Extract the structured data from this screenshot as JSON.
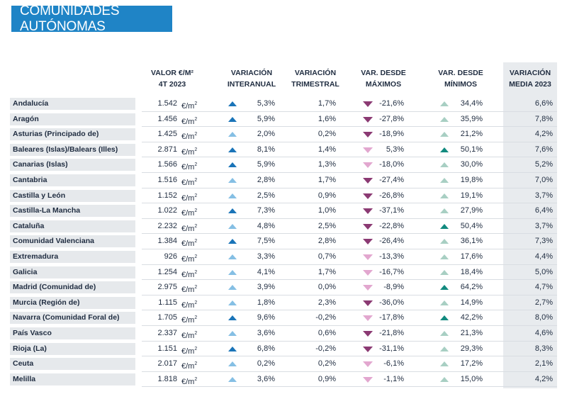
{
  "banner": {
    "title": "COMUNIDADES AUTÓNOMAS"
  },
  "headers": {
    "valor": [
      "VALOR €/M²",
      "4T 2023"
    ],
    "interanual": [
      "VARIACIÓN",
      "INTERANUAL"
    ],
    "trimestral": [
      "VARIACIÓN",
      "TRIMESTRAL"
    ],
    "maximos": [
      "VAR. DESDE",
      "MÁXIMOS"
    ],
    "minimos": [
      "VAR. DESDE",
      "MÍNIMOS"
    ],
    "media": [
      "VARIACIÓN",
      "MEDIA 2023"
    ]
  },
  "unit": "€/m",
  "unit_sup": "2",
  "colors": {
    "up_dark": "#1a74b8",
    "up_light": "#85bfe4",
    "down_dark": "#8b3a73",
    "down_light": "#e2a7cf",
    "min_dark": "#128a7f",
    "min_light": "#a8cfc3"
  },
  "rows": [
    {
      "name": "Andalucía",
      "valor": "1.542",
      "inter": "5,3%",
      "inter_shade": "dark",
      "trim": "1,7%",
      "max": "-21,6%",
      "max_shade": "dark",
      "min": "34,4%",
      "min_shade": "light",
      "media": "6,6%"
    },
    {
      "name": "Aragón",
      "valor": "1.456",
      "inter": "5,9%",
      "inter_shade": "dark",
      "trim": "1,6%",
      "max": "-27,8%",
      "max_shade": "dark",
      "min": "35,9%",
      "min_shade": "light",
      "media": "7,8%"
    },
    {
      "name": "Asturias (Principado de)",
      "valor": "1.425",
      "inter": "2,0%",
      "inter_shade": "light",
      "trim": "0,2%",
      "max": "-18,9%",
      "max_shade": "dark",
      "min": "21,2%",
      "min_shade": "light",
      "media": "4,2%"
    },
    {
      "name": "Baleares (Islas)/Balears (Illes)",
      "valor": "2.871",
      "inter": "8,1%",
      "inter_shade": "dark",
      "trim": "1,4%",
      "max": "5,3%",
      "max_shade": "light",
      "min": "50,1%",
      "min_shade": "dark",
      "media": "7,6%"
    },
    {
      "name": "Canarias (Islas)",
      "valor": "1.566",
      "inter": "5,9%",
      "inter_shade": "dark",
      "trim": "1,3%",
      "max": "-18,0%",
      "max_shade": "light",
      "min": "30,0%",
      "min_shade": "light",
      "media": "5,2%"
    },
    {
      "name": "Cantabria",
      "valor": "1.516",
      "inter": "2,8%",
      "inter_shade": "light",
      "trim": "1,7%",
      "max": "-27,4%",
      "max_shade": "dark",
      "min": "19,8%",
      "min_shade": "light",
      "media": "7,0%"
    },
    {
      "name": "Castilla y León",
      "valor": "1.152",
      "inter": "2,5%",
      "inter_shade": "light",
      "trim": "0,9%",
      "max": "-26,8%",
      "max_shade": "dark",
      "min": "19,1%",
      "min_shade": "light",
      "media": "3,7%"
    },
    {
      "name": "Castilla-La Mancha",
      "valor": "1.022",
      "inter": "7,3%",
      "inter_shade": "dark",
      "trim": "1,0%",
      "max": "-37,1%",
      "max_shade": "dark",
      "min": "27,9%",
      "min_shade": "light",
      "media": "6,4%"
    },
    {
      "name": "Cataluña",
      "valor": "2.232",
      "inter": "4,8%",
      "inter_shade": "light",
      "trim": "2,5%",
      "max": "-22,8%",
      "max_shade": "dark",
      "min": "50,4%",
      "min_shade": "dark",
      "media": "3,7%"
    },
    {
      "name": "Comunidad Valenciana",
      "valor": "1.384",
      "inter": "7,5%",
      "inter_shade": "dark",
      "trim": "2,8%",
      "max": "-26,4%",
      "max_shade": "dark",
      "min": "36,1%",
      "min_shade": "light",
      "media": "7,3%"
    },
    {
      "name": "Extremadura",
      "valor": "926",
      "inter": "3,3%",
      "inter_shade": "light",
      "trim": "0,7%",
      "max": "-13,3%",
      "max_shade": "light",
      "min": "17,6%",
      "min_shade": "light",
      "media": "4,4%"
    },
    {
      "name": "Galicia",
      "valor": "1.254",
      "inter": "4,1%",
      "inter_shade": "light",
      "trim": "1,7%",
      "max": "-16,7%",
      "max_shade": "light",
      "min": "18,4%",
      "min_shade": "light",
      "media": "5,0%"
    },
    {
      "name": "Madrid (Comunidad de)",
      "valor": "2.975",
      "inter": "3,9%",
      "inter_shade": "light",
      "trim": "0,0%",
      "max": "-8,9%",
      "max_shade": "light",
      "min": "64,2%",
      "min_shade": "dark",
      "media": "4,7%"
    },
    {
      "name": "Murcia (Región de)",
      "valor": "1.115",
      "inter": "1,8%",
      "inter_shade": "light",
      "trim": "2,3%",
      "max": "-36,0%",
      "max_shade": "dark",
      "min": "14,9%",
      "min_shade": "light",
      "media": "2,7%"
    },
    {
      "name": "Navarra (Comunidad Foral de)",
      "valor": "1.705",
      "inter": "9,6%",
      "inter_shade": "dark",
      "trim": "-0,2%",
      "max": "-17,8%",
      "max_shade": "light",
      "min": "42,2%",
      "min_shade": "dark",
      "media": "8,0%"
    },
    {
      "name": "País Vasco",
      "valor": "2.337",
      "inter": "3,6%",
      "inter_shade": "light",
      "trim": "0,6%",
      "max": "-21,8%",
      "max_shade": "dark",
      "min": "21,3%",
      "min_shade": "light",
      "media": "4,6%"
    },
    {
      "name": "Rioja (La)",
      "valor": "1.151",
      "inter": "6,8%",
      "inter_shade": "dark",
      "trim": "-0,2%",
      "max": "-31,1%",
      "max_shade": "dark",
      "min": "29,3%",
      "min_shade": "light",
      "media": "8,3%"
    },
    {
      "name": "Ceuta",
      "valor": "2.017",
      "inter": "0,2%",
      "inter_shade": "light",
      "trim": "0,2%",
      "max": "-6,1%",
      "max_shade": "light",
      "min": "17,2%",
      "min_shade": "light",
      "media": "2,1%"
    },
    {
      "name": "Melilla",
      "valor": "1.818",
      "inter": "3,6%",
      "inter_shade": "light",
      "trim": "0,9%",
      "max": "-1,1%",
      "max_shade": "light",
      "min": "15,0%",
      "min_shade": "light",
      "media": "4,2%"
    }
  ]
}
